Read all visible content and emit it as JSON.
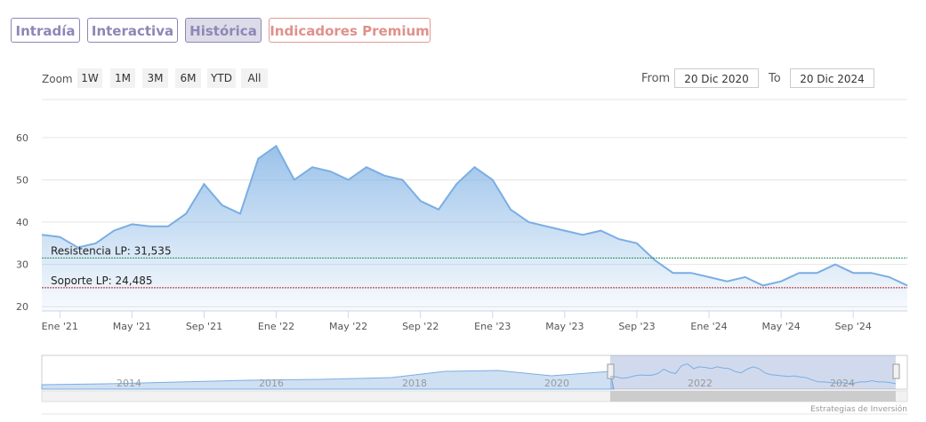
{
  "tabs": [
    "Intradía",
    "Interactiva",
    "Histórica",
    "Indicadores Premium"
  ],
  "zoom": {
    "label": "Zoom",
    "buttons": [
      "1W",
      "1M",
      "3M",
      "6M",
      "YTD",
      "All"
    ]
  },
  "range": {
    "from_label": "From",
    "from": "20 Dic 2020",
    "to_label": "To",
    "to": "20 Dic 2024"
  },
  "chart_data": {
    "type": "area",
    "x": [
      "2020-12",
      "2021-01",
      "2021-02",
      "2021-03",
      "2021-04",
      "2021-05",
      "2021-06",
      "2021-07",
      "2021-08",
      "2021-09",
      "2021-10",
      "2021-11",
      "2021-12",
      "2022-01",
      "2022-02",
      "2022-03",
      "2022-04",
      "2022-05",
      "2022-06",
      "2022-07",
      "2022-08",
      "2022-09",
      "2022-10",
      "2022-11",
      "2022-12",
      "2023-01",
      "2023-02",
      "2023-03",
      "2023-04",
      "2023-05",
      "2023-06",
      "2023-07",
      "2023-08",
      "2023-09",
      "2023-10",
      "2023-11",
      "2023-12",
      "2024-01",
      "2024-02",
      "2024-03",
      "2024-04",
      "2024-05",
      "2024-06",
      "2024-07",
      "2024-08",
      "2024-09",
      "2024-10",
      "2024-11",
      "2024-12"
    ],
    "values": [
      37,
      36.5,
      34,
      35,
      38,
      39.5,
      39,
      39,
      42,
      49,
      44,
      42,
      55,
      58,
      50,
      53,
      52,
      50,
      53,
      51,
      50,
      45,
      43,
      49,
      53,
      50,
      43,
      40,
      39,
      38,
      37,
      38,
      36,
      35,
      31,
      28,
      28,
      27,
      26,
      27,
      25,
      26,
      28,
      28,
      30,
      28,
      28,
      27,
      25
    ],
    "color": "#7aaee3",
    "xlim": [
      "2020-12",
      "2024-12"
    ],
    "xticks": [
      {
        "value": "2021-01",
        "label": "Ene '21"
      },
      {
        "value": "2021-05",
        "label": "May '21"
      },
      {
        "value": "2021-09",
        "label": "Sep '21"
      },
      {
        "value": "2022-01",
        "label": "Ene '22"
      },
      {
        "value": "2022-05",
        "label": "May '22"
      },
      {
        "value": "2022-09",
        "label": "Sep '22"
      },
      {
        "value": "2023-01",
        "label": "Ene '23"
      },
      {
        "value": "2023-05",
        "label": "May '23"
      },
      {
        "value": "2023-09",
        "label": "Sep '23"
      },
      {
        "value": "2024-01",
        "label": "Ene '24"
      },
      {
        "value": "2024-05",
        "label": "May '24"
      },
      {
        "value": "2024-09",
        "label": "Sep '24"
      }
    ],
    "ylim": [
      19,
      69
    ],
    "yticks": [
      20,
      30,
      40,
      50,
      60
    ],
    "grid": true,
    "plot_lines": [
      {
        "label": "Resistencia LP: 31,535",
        "value": 31.535,
        "color": "#2e8b57"
      },
      {
        "label": "Soporte LP: 24,485",
        "value": 24.485,
        "color": "#b22222"
      }
    ],
    "navigator_labels": [
      "2014",
      "2016",
      "2018",
      "2020",
      "2022",
      "2024"
    ],
    "credit": "Estrategias de Inversión"
  }
}
